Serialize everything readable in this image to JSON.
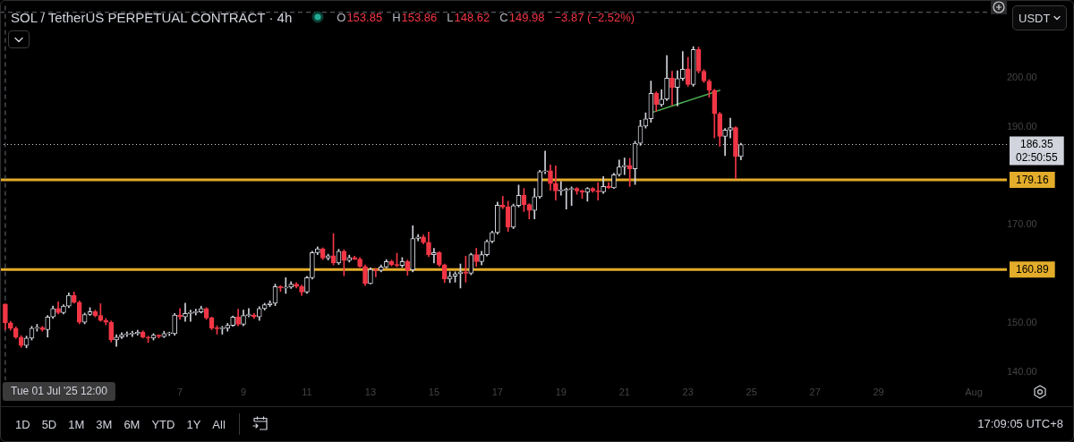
{
  "chart_data": {
    "type": "candlestick",
    "title": "SOL / TetherUS PERPETUAL CONTRACT · 4h",
    "xlim": [
      "2025-07-01T08:00",
      "2025-08-02T01:00"
    ],
    "xticks": [
      {
        "value": "2025-07-07",
        "label": "7"
      },
      {
        "value": "2025-07-09",
        "label": "9"
      },
      {
        "value": "2025-07-11",
        "label": "11"
      },
      {
        "value": "2025-07-13",
        "label": "13"
      },
      {
        "value": "2025-07-15",
        "label": "15"
      },
      {
        "value": "2025-07-17",
        "label": "17"
      },
      {
        "value": "2025-07-19",
        "label": "19"
      },
      {
        "value": "2025-07-21",
        "label": "21"
      },
      {
        "value": "2025-07-23",
        "label": "23"
      },
      {
        "value": "2025-07-25",
        "label": "25"
      },
      {
        "value": "2025-07-27",
        "label": "27"
      },
      {
        "value": "2025-07-29",
        "label": "29"
      },
      {
        "value": "2025-08-01",
        "label": "Aug"
      }
    ],
    "ylim": [
      138.3,
      214.6
    ],
    "yticks": [
      {
        "value": 140,
        "label": "140.00"
      },
      {
        "value": 150,
        "label": "150.00"
      },
      {
        "value": 170,
        "label": "170.00"
      },
      {
        "value": 190,
        "label": "190.00"
      },
      {
        "value": 200,
        "label": "200.00"
      }
    ],
    "series": [
      {
        "x": [
          "2025-07-01T12:00",
          "2025-07-01T16:00",
          "2025-07-01T20:00",
          "2025-07-02T00:00",
          "2025-07-02T04:00",
          "2025-07-02T08:00",
          "2025-07-02T12:00",
          "2025-07-02T16:00",
          "2025-07-02T20:00",
          "2025-07-03T00:00",
          "2025-07-03T04:00",
          "2025-07-03T08:00",
          "2025-07-03T12:00",
          "2025-07-03T16:00",
          "2025-07-03T20:00",
          "2025-07-04T00:00",
          "2025-07-04T04:00",
          "2025-07-04T08:00",
          "2025-07-04T12:00",
          "2025-07-04T16:00",
          "2025-07-04T20:00",
          "2025-07-05T00:00",
          "2025-07-05T04:00",
          "2025-07-05T08:00",
          "2025-07-05T12:00",
          "2025-07-05T16:00",
          "2025-07-05T20:00",
          "2025-07-06T00:00",
          "2025-07-06T04:00",
          "2025-07-06T08:00",
          "2025-07-06T12:00",
          "2025-07-06T16:00",
          "2025-07-06T20:00",
          "2025-07-07T00:00",
          "2025-07-07T04:00",
          "2025-07-07T08:00",
          "2025-07-07T12:00",
          "2025-07-07T16:00",
          "2025-07-07T20:00",
          "2025-07-08T00:00",
          "2025-07-08T04:00",
          "2025-07-08T08:00",
          "2025-07-08T12:00",
          "2025-07-08T16:00",
          "2025-07-08T20:00",
          "2025-07-09T00:00",
          "2025-07-09T04:00",
          "2025-07-09T08:00",
          "2025-07-09T12:00",
          "2025-07-09T16:00",
          "2025-07-09T20:00",
          "2025-07-10T00:00",
          "2025-07-10T04:00",
          "2025-07-10T08:00",
          "2025-07-10T12:00",
          "2025-07-10T16:00",
          "2025-07-10T20:00",
          "2025-07-11T00:00",
          "2025-07-11T04:00",
          "2025-07-11T08:00",
          "2025-07-11T12:00",
          "2025-07-11T16:00",
          "2025-07-11T20:00",
          "2025-07-12T00:00",
          "2025-07-12T04:00",
          "2025-07-12T08:00",
          "2025-07-12T12:00",
          "2025-07-12T16:00",
          "2025-07-12T20:00",
          "2025-07-13T00:00",
          "2025-07-13T04:00",
          "2025-07-13T08:00",
          "2025-07-13T12:00",
          "2025-07-13T16:00",
          "2025-07-13T20:00",
          "2025-07-14T00:00",
          "2025-07-14T04:00",
          "2025-07-14T08:00",
          "2025-07-14T12:00",
          "2025-07-14T16:00",
          "2025-07-14T20:00",
          "2025-07-15T00:00",
          "2025-07-15T04:00",
          "2025-07-15T08:00",
          "2025-07-15T12:00",
          "2025-07-15T16:00",
          "2025-07-15T20:00",
          "2025-07-16T00:00",
          "2025-07-16T04:00",
          "2025-07-16T08:00",
          "2025-07-16T12:00",
          "2025-07-16T16:00",
          "2025-07-16T20:00",
          "2025-07-17T00:00",
          "2025-07-17T04:00",
          "2025-07-17T08:00",
          "2025-07-17T12:00",
          "2025-07-17T16:00",
          "2025-07-17T20:00",
          "2025-07-18T00:00",
          "2025-07-18T04:00",
          "2025-07-18T08:00",
          "2025-07-18T12:00",
          "2025-07-18T16:00",
          "2025-07-18T20:00",
          "2025-07-19T00:00",
          "2025-07-19T04:00",
          "2025-07-19T08:00",
          "2025-07-19T12:00",
          "2025-07-19T16:00",
          "2025-07-19T20:00",
          "2025-07-20T00:00",
          "2025-07-20T04:00",
          "2025-07-20T08:00",
          "2025-07-20T12:00",
          "2025-07-20T16:00",
          "2025-07-20T20:00",
          "2025-07-21T00:00",
          "2025-07-21T04:00",
          "2025-07-21T08:00",
          "2025-07-21T12:00",
          "2025-07-21T16:00",
          "2025-07-21T20:00",
          "2025-07-22T00:00",
          "2025-07-22T04:00",
          "2025-07-22T08:00",
          "2025-07-22T12:00",
          "2025-07-22T16:00",
          "2025-07-22T20:00",
          "2025-07-23T00:00",
          "2025-07-23T04:00",
          "2025-07-23T08:00",
          "2025-07-23T12:00",
          "2025-07-23T16:00",
          "2025-07-23T20:00",
          "2025-07-24T00:00",
          "2025-07-24T04:00",
          "2025-07-24T08:00",
          "2025-07-24T12:00",
          "2025-07-24T16:00"
        ],
        "ohlc": [
          [
            153.85,
            153.86,
            148.62,
            149.98
          ],
          [
            150.0,
            150.3,
            148.5,
            148.9
          ],
          [
            148.9,
            149.2,
            146.8,
            147.1
          ],
          [
            147.1,
            147.4,
            145.0,
            145.4
          ],
          [
            145.4,
            147.3,
            144.9,
            146.9
          ],
          [
            146.9,
            149.3,
            146.5,
            148.9
          ],
          [
            148.9,
            149.7,
            148.3,
            149.0
          ],
          [
            149.0,
            149.3,
            148.3,
            148.6
          ],
          [
            148.6,
            151.5,
            147.1,
            151.2
          ],
          [
            151.2,
            153.4,
            150.9,
            152.9
          ],
          [
            152.9,
            154.3,
            151.8,
            152.1
          ],
          [
            152.1,
            153.7,
            151.8,
            153.4
          ],
          [
            153.4,
            156.1,
            153.1,
            155.6
          ],
          [
            155.6,
            156.3,
            154.0,
            154.2
          ],
          [
            154.2,
            154.5,
            149.8,
            150.1
          ],
          [
            150.1,
            152.0,
            149.8,
            151.7
          ],
          [
            151.7,
            153.1,
            151.5,
            152.3
          ],
          [
            152.3,
            152.6,
            151.2,
            151.5
          ],
          [
            151.5,
            153.9,
            150.3,
            150.5
          ],
          [
            150.5,
            150.9,
            149.6,
            150.1
          ],
          [
            150.1,
            150.4,
            146.1,
            146.5
          ],
          [
            146.5,
            147.6,
            145.2,
            147.1
          ],
          [
            147.1,
            148.0,
            146.8,
            147.6
          ],
          [
            147.6,
            148.2,
            147.2,
            147.7
          ],
          [
            147.7,
            148.3,
            147.2,
            147.8
          ],
          [
            147.8,
            148.5,
            147.5,
            148.1
          ],
          [
            148.1,
            148.4,
            146.9,
            147.1
          ],
          [
            147.1,
            147.3,
            146.0,
            146.9
          ],
          [
            146.9,
            147.8,
            146.5,
            147.5
          ],
          [
            147.5,
            147.6,
            146.9,
            147.2
          ],
          [
            147.2,
            148.3,
            147.0,
            147.8
          ],
          [
            147.8,
            148.1,
            147.4,
            147.8
          ],
          [
            147.8,
            151.9,
            147.5,
            151.6
          ],
          [
            151.6,
            152.9,
            150.7,
            151.2
          ],
          [
            151.2,
            154.0,
            150.3,
            151.9
          ],
          [
            151.9,
            152.6,
            150.3,
            152.1
          ],
          [
            152.1,
            152.8,
            151.6,
            152.2
          ],
          [
            152.2,
            153.4,
            152.0,
            152.9
          ],
          [
            152.9,
            153.1,
            150.7,
            151.0
          ],
          [
            151.0,
            151.2,
            148.6,
            148.9
          ],
          [
            148.9,
            149.4,
            147.7,
            148.8
          ],
          [
            148.8,
            149.3,
            147.7,
            148.9
          ],
          [
            148.9,
            149.9,
            148.3,
            149.5
          ],
          [
            149.5,
            151.4,
            149.3,
            151.2
          ],
          [
            151.2,
            152.8,
            149.4,
            149.7
          ],
          [
            149.7,
            152.6,
            149.4,
            151.5
          ],
          [
            151.5,
            152.9,
            151.2,
            151.6
          ],
          [
            151.6,
            151.9,
            150.9,
            151.2
          ],
          [
            151.2,
            153.3,
            150.5,
            152.9
          ],
          [
            152.9,
            154.0,
            152.6,
            153.7
          ],
          [
            153.7,
            154.5,
            153.3,
            154.0
          ],
          [
            154.0,
            157.9,
            153.5,
            157.4
          ],
          [
            157.4,
            157.6,
            156.4,
            157.1
          ],
          [
            157.1,
            159.2,
            156.0,
            157.3
          ],
          [
            157.3,
            158.4,
            157.0,
            157.9
          ],
          [
            157.9,
            158.2,
            157.1,
            157.4
          ],
          [
            157.4,
            157.7,
            155.6,
            156.3
          ],
          [
            156.3,
            159.5,
            156.0,
            159.2
          ],
          [
            159.2,
            164.6,
            158.9,
            164.3
          ],
          [
            164.3,
            165.5,
            163.9,
            165.1
          ],
          [
            165.1,
            165.3,
            162.9,
            163.2
          ],
          [
            163.2,
            164.0,
            162.8,
            163.7
          ],
          [
            163.7,
            168.2,
            161.8,
            162.2
          ],
          [
            162.2,
            165.0,
            161.9,
            164.6
          ],
          [
            164.6,
            164.9,
            159.6,
            162.7
          ],
          [
            162.7,
            163.8,
            162.4,
            163.3
          ],
          [
            163.3,
            163.6,
            162.9,
            163.0
          ],
          [
            163.0,
            163.3,
            161.3,
            161.5
          ],
          [
            161.5,
            161.8,
            157.6,
            158.0
          ],
          [
            158.0,
            161.2,
            157.9,
            160.9
          ],
          [
            160.9,
            161.1,
            159.4,
            160.7
          ],
          [
            160.7,
            161.8,
            160.4,
            161.4
          ],
          [
            161.4,
            162.9,
            161.2,
            162.5
          ],
          [
            162.5,
            162.8,
            161.6,
            161.9
          ],
          [
            161.9,
            164.2,
            161.4,
            161.7
          ],
          [
            161.7,
            163.3,
            161.3,
            162.5
          ],
          [
            162.5,
            162.8,
            159.7,
            160.8
          ],
          [
            160.8,
            169.8,
            160.4,
            167.2
          ],
          [
            167.2,
            168.0,
            166.7,
            167.5
          ],
          [
            167.5,
            167.9,
            166.1,
            166.4
          ],
          [
            166.4,
            168.5,
            163.5,
            163.9
          ],
          [
            163.9,
            165.2,
            162.2,
            164.3
          ],
          [
            164.3,
            164.5,
            161.5,
            161.8
          ],
          [
            161.8,
            162.0,
            158.2,
            158.9
          ],
          [
            158.9,
            160.4,
            158.2,
            159.5
          ],
          [
            159.5,
            160.4,
            158.3,
            160.0
          ],
          [
            160.0,
            162.0,
            157.1,
            160.4
          ],
          [
            160.4,
            163.6,
            158.3,
            160.1
          ],
          [
            160.1,
            164.2,
            159.8,
            163.9
          ],
          [
            163.9,
            165.2,
            161.5,
            162.5
          ],
          [
            162.5,
            164.6,
            161.8,
            163.9
          ],
          [
            163.9,
            166.9,
            163.6,
            166.6
          ],
          [
            166.6,
            168.7,
            166.3,
            168.4
          ],
          [
            168.4,
            174.6,
            168.1,
            174.0
          ],
          [
            174.0,
            175.8,
            173.3,
            173.6
          ],
          [
            173.6,
            174.8,
            168.6,
            169.5
          ],
          [
            169.5,
            174.2,
            169.2,
            173.9
          ],
          [
            173.9,
            178.1,
            173.6,
            176.0
          ],
          [
            176.0,
            177.4,
            172.7,
            174.1
          ],
          [
            174.1,
            174.3,
            171.2,
            172.9
          ],
          [
            172.9,
            177.4,
            171.2,
            175.7
          ],
          [
            175.7,
            181.1,
            175.4,
            180.8
          ],
          [
            180.8,
            185.0,
            180.4,
            181.0
          ],
          [
            181.0,
            182.2,
            177.0,
            178.4
          ],
          [
            178.4,
            182.0,
            175.0,
            176.9
          ],
          [
            176.9,
            178.8,
            176.0,
            177.0
          ],
          [
            177.0,
            177.5,
            173.2,
            177.2
          ],
          [
            177.2,
            177.7,
            173.9,
            177.4
          ],
          [
            177.4,
            177.6,
            176.2,
            176.9
          ],
          [
            176.9,
            177.1,
            175.4,
            176.6
          ],
          [
            176.6,
            177.6,
            174.8,
            177.4
          ],
          [
            177.4,
            177.6,
            176.6,
            176.9
          ],
          [
            176.9,
            178.6,
            175.0,
            176.7
          ],
          [
            176.7,
            179.8,
            176.4,
            177.8
          ],
          [
            177.8,
            178.6,
            177.4,
            177.5
          ],
          [
            177.5,
            180.5,
            177.4,
            180.2
          ],
          [
            180.2,
            183.2,
            179.9,
            181.8
          ],
          [
            181.8,
            183.6,
            180.2,
            182.1
          ],
          [
            182.1,
            183.5,
            177.8,
            181.4
          ],
          [
            181.4,
            187.0,
            178.2,
            186.6
          ],
          [
            186.6,
            191.3,
            186.2,
            190.1
          ],
          [
            190.1,
            192.8,
            189.7,
            191.6
          ],
          [
            191.6,
            199.3,
            190.9,
            196.8
          ],
          [
            196.8,
            197.1,
            193.1,
            194.5
          ],
          [
            194.5,
            197.5,
            194.1,
            195.6
          ],
          [
            195.6,
            204.5,
            195.3,
            199.9
          ],
          [
            199.9,
            201.3,
            194.4,
            198.0
          ],
          [
            198.0,
            201.4,
            194.2,
            199.8
          ],
          [
            199.8,
            205.3,
            199.4,
            201.7
          ],
          [
            201.7,
            204.1,
            198.2,
            198.6
          ],
          [
            198.6,
            206.3,
            198.2,
            205.7
          ],
          [
            205.7,
            206.2,
            200.9,
            201.3
          ],
          [
            201.3,
            201.6,
            199.0,
            199.3
          ],
          [
            199.3,
            199.6,
            196.0,
            197.4
          ],
          [
            197.4,
            197.6,
            187.7,
            192.6
          ],
          [
            192.6,
            192.9,
            186.0,
            188.0
          ],
          [
            188.0,
            189.6,
            184.1,
            189.3
          ],
          [
            189.3,
            191.7,
            187.7,
            189.8
          ],
          [
            189.8,
            190.0,
            179.4,
            183.9
          ],
          [
            183.9,
            186.6,
            183.2,
            186.35
          ]
        ],
        "colors": [
          "#f23645",
          "#f23645",
          "#f23645",
          "#f23645",
          "#d1d4dc",
          "#d1d4dc",
          "#d1d4dc",
          "#f23645",
          "#d1d4dc",
          "#d1d4dc",
          "#f23645",
          "#d1d4dc",
          "#d1d4dc",
          "#f23645",
          "#f23645",
          "#d1d4dc",
          "#d1d4dc",
          "#f23645",
          "#f23645",
          "#f23645",
          "#f23645",
          "#d1d4dc",
          "#d1d4dc",
          "#d1d4dc",
          "#d1d4dc",
          "#d1d4dc",
          "#f23645",
          "#f23645",
          "#d1d4dc",
          "#f23645",
          "#d1d4dc",
          "#d1d4dc",
          "#d1d4dc",
          "#f23645",
          "#d1d4dc",
          "#d1d4dc",
          "#d1d4dc",
          "#d1d4dc",
          "#f23645",
          "#f23645",
          "#f23645",
          "#d1d4dc",
          "#d1d4dc",
          "#d1d4dc",
          "#f23645",
          "#d1d4dc",
          "#d1d4dc",
          "#f23645",
          "#d1d4dc",
          "#d1d4dc",
          "#d1d4dc",
          "#d1d4dc",
          "#f23645",
          "#d1d4dc",
          "#d1d4dc",
          "#f23645",
          "#f23645",
          "#d1d4dc",
          "#d1d4dc",
          "#d1d4dc",
          "#f23645",
          "#d1d4dc",
          "#f23645",
          "#d1d4dc",
          "#f23645",
          "#d1d4dc",
          "#f23645",
          "#f23645",
          "#f23645",
          "#d1d4dc",
          "#f23645",
          "#d1d4dc",
          "#d1d4dc",
          "#f23645",
          "#f23645",
          "#d1d4dc",
          "#f23645",
          "#d1d4dc",
          "#d1d4dc",
          "#f23645",
          "#f23645",
          "#d1d4dc",
          "#f23645",
          "#f23645",
          "#d1d4dc",
          "#d1d4dc",
          "#d1d4dc",
          "#f23645",
          "#d1d4dc",
          "#f23645",
          "#d1d4dc",
          "#d1d4dc",
          "#d1d4dc",
          "#d1d4dc",
          "#f23645",
          "#f23645",
          "#d1d4dc",
          "#d1d4dc",
          "#f23645",
          "#f23645",
          "#d1d4dc",
          "#d1d4dc",
          "#d1d4dc",
          "#f23645",
          "#f23645",
          "#d1d4dc",
          "#d1d4dc",
          "#d1d4dc",
          "#f23645",
          "#f23645",
          "#d1d4dc",
          "#f23645",
          "#f23645",
          "#d1d4dc",
          "#f23645",
          "#d1d4dc",
          "#d1d4dc",
          "#d1d4dc",
          "#f23645",
          "#d1d4dc",
          "#d1d4dc",
          "#d1d4dc",
          "#d1d4dc",
          "#f23645",
          "#d1d4dc",
          "#d1d4dc",
          "#f23645",
          "#d1d4dc",
          "#d1d4dc",
          "#f23645",
          "#d1d4dc",
          "#f23645",
          "#f23645",
          "#f23645",
          "#f23645",
          "#f23645",
          "#d1d4dc",
          "#d1d4dc",
          "#f23645",
          "#d1d4dc"
        ]
      },
      {
        "type": "line",
        "color": "#4caf50",
        "x": [
          "2025-07-21T20:00",
          "2025-07-24T00:00"
        ],
        "values": [
          192.8,
          197.4
        ]
      }
    ],
    "ref_lines": [
      {
        "axis": "y",
        "value": 179.16,
        "label": "179.16",
        "color": "#e3ac2a"
      },
      {
        "axis": "y",
        "value": 160.89,
        "label": "160.89",
        "color": "#e3ac2a"
      },
      {
        "axis": "y",
        "value": 186.35,
        "label": "186.35",
        "color": "#d1d4dc",
        "line_style": "dotted"
      },
      {
        "axis": "x",
        "value": "2025-07-01T12:00",
        "label": "Tue 01 Jul '25 12:00",
        "color": "#6a6d78",
        "line_style": "dashed"
      },
      {
        "axis": "y",
        "value": 213.3,
        "color": "#6a6d78",
        "line_style": "dashed"
      }
    ],
    "annotations": [
      "O153.85",
      "H153.86",
      "L148.62",
      "C149.98",
      "−3.87 (−2.52%)",
      "02:50:55",
      "USDT",
      "1D",
      "5D",
      "1M",
      "3M",
      "6M",
      "YTD",
      "1Y",
      "All",
      "17:09:05 UTC+8"
    ]
  }
}
